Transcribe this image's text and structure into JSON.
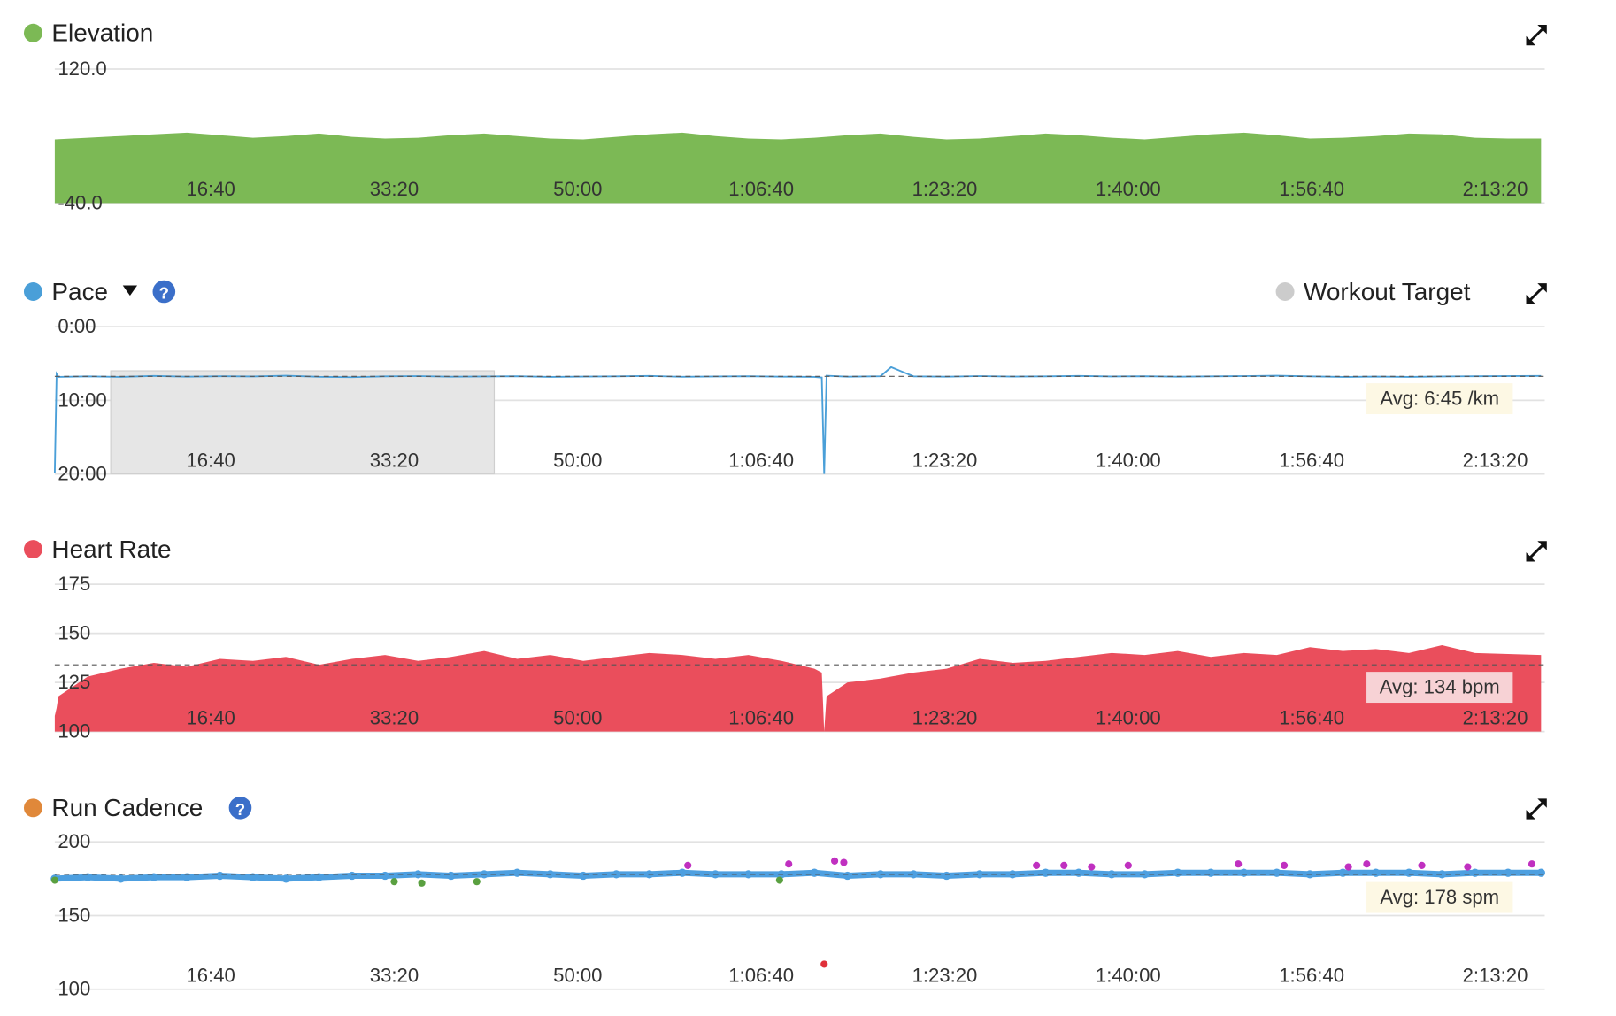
{
  "chart_data": [
    {
      "type": "area",
      "title": "Elevation",
      "color": "#7cb955",
      "x": [
        150,
        330,
        510,
        690,
        870,
        1050,
        1230,
        1410,
        1590,
        1770,
        1950,
        2130,
        2310,
        2490,
        2670,
        2850,
        3030,
        3210,
        3390,
        3570,
        3750,
        3930,
        4110,
        4290,
        4470,
        4650,
        4830,
        5010,
        5190,
        5370,
        5550,
        5730,
        5910,
        6090,
        6270,
        6450,
        6630,
        6810,
        6990,
        7170,
        7350,
        7530,
        7710,
        7890,
        8070,
        8250
      ],
      "values": [
        36,
        38,
        40,
        42,
        44,
        41,
        38,
        40,
        43,
        39,
        37,
        38,
        41,
        43,
        40,
        37,
        36,
        39,
        42,
        44,
        40,
        37,
        36,
        38,
        41,
        43,
        39,
        36,
        37,
        40,
        43,
        41,
        38,
        36,
        39,
        42,
        44,
        41,
        37,
        38,
        40,
        43,
        42,
        38,
        37,
        37
      ],
      "xlim": [
        150,
        8270
      ],
      "xticks": [
        {
          "value": 1000,
          "label": "16:40"
        },
        {
          "value": 2000,
          "label": "33:20"
        },
        {
          "value": 3000,
          "label": "50:00"
        },
        {
          "value": 4000,
          "label": "1:06:40"
        },
        {
          "value": 5000,
          "label": "1:23:20"
        },
        {
          "value": 6000,
          "label": "1:40:00"
        },
        {
          "value": 7000,
          "label": "1:56:40"
        },
        {
          "value": 8000,
          "label": "2:13:20"
        }
      ],
      "ylim": [
        -40,
        120
      ],
      "yticks": [
        {
          "value": -40,
          "label": "-40.0"
        },
        {
          "value": 120,
          "label": "120.0"
        }
      ]
    },
    {
      "type": "line",
      "title": "Pace",
      "color": "#4a9fd8",
      "x": [
        150,
        160,
        170,
        330,
        510,
        690,
        870,
        1050,
        1230,
        1410,
        1590,
        1770,
        1950,
        2130,
        2310,
        2490,
        2670,
        2850,
        3030,
        3210,
        3390,
        3570,
        3750,
        3930,
        4110,
        4290,
        4330,
        4343,
        4356,
        4470,
        4650,
        4708,
        4830,
        5010,
        5190,
        5370,
        5550,
        5730,
        5910,
        6090,
        6270,
        6450,
        6630,
        6810,
        6990,
        7170,
        7350,
        7530,
        7710,
        7890,
        8250
      ],
      "values": [
        1190,
        385,
        410,
        405,
        410,
        402,
        408,
        404,
        406,
        400,
        409,
        412,
        405,
        403,
        408,
        406,
        404,
        410,
        407,
        405,
        402,
        409,
        406,
        404,
        408,
        410,
        415,
        1200,
        400,
        408,
        404,
        330,
        405,
        408,
        403,
        407,
        405,
        402,
        406,
        404,
        408,
        405,
        403,
        400,
        405,
        410,
        407,
        410,
        406,
        404,
        402
      ],
      "avg": {
        "value": 405,
        "label": "Avg: 6:45 /km"
      },
      "workout_target": {
        "name": "Workout Target",
        "color": "#cccccc",
        "x": [
          455,
          2545
        ],
        "y": [
          1200,
          360
        ]
      },
      "xlim": [
        150,
        8270
      ],
      "xticks": [
        {
          "value": 1000,
          "label": "16:40"
        },
        {
          "value": 2000,
          "label": "33:20"
        },
        {
          "value": 3000,
          "label": "50:00"
        },
        {
          "value": 4000,
          "label": "1:06:40"
        },
        {
          "value": 5000,
          "label": "1:23:20"
        },
        {
          "value": 6000,
          "label": "1:40:00"
        },
        {
          "value": 7000,
          "label": "1:56:40"
        },
        {
          "value": 8000,
          "label": "2:13:20"
        }
      ],
      "ylim": [
        1200,
        0
      ],
      "yticks": [
        {
          "value": 1200,
          "label": "20:00"
        },
        {
          "value": 600,
          "label": "10:00"
        },
        {
          "value": 0,
          "label": "0:00"
        }
      ]
    },
    {
      "type": "area",
      "title": "Heart Rate",
      "color": "#ea4e5c",
      "x": [
        150,
        160,
        170,
        330,
        510,
        690,
        870,
        1050,
        1230,
        1410,
        1590,
        1770,
        1950,
        2130,
        2310,
        2490,
        2670,
        2850,
        3030,
        3210,
        3390,
        3570,
        3750,
        3930,
        4110,
        4290,
        4330,
        4343,
        4356,
        4470,
        4650,
        4708,
        4830,
        5010,
        5190,
        5370,
        5550,
        5730,
        5910,
        6090,
        6270,
        6450,
        6630,
        6810,
        6990,
        7170,
        7350,
        7530,
        7710,
        7890,
        8250
      ],
      "values": [
        108,
        112,
        118,
        128,
        132,
        135,
        133,
        137,
        136,
        138,
        134,
        137,
        139,
        136,
        138,
        141,
        137,
        139,
        136,
        138,
        140,
        139,
        137,
        139,
        136,
        132,
        130,
        100,
        118,
        125,
        127,
        128,
        130,
        132,
        137,
        135,
        136,
        138,
        140,
        139,
        141,
        138,
        140,
        139,
        143,
        141,
        142,
        140,
        144,
        140,
        139
      ],
      "avg": {
        "value": 134,
        "label": "Avg: 134 bpm"
      },
      "xlim": [
        150,
        8270
      ],
      "xticks": [
        {
          "value": 1000,
          "label": "16:40"
        },
        {
          "value": 2000,
          "label": "33:20"
        },
        {
          "value": 3000,
          "label": "50:00"
        },
        {
          "value": 4000,
          "label": "1:06:40"
        },
        {
          "value": 5000,
          "label": "1:23:20"
        },
        {
          "value": 6000,
          "label": "1:40:00"
        },
        {
          "value": 7000,
          "label": "1:56:40"
        },
        {
          "value": 8000,
          "label": "2:13:20"
        }
      ],
      "ylim": [
        100,
        175
      ],
      "yticks": [
        100,
        125,
        150,
        175
      ]
    },
    {
      "type": "scatter",
      "title": "Run Cadence",
      "color": "#e0883a",
      "series": [
        {
          "color": "#4d9fe0",
          "x": [
            150,
            330,
            510,
            690,
            870,
            1050,
            1230,
            1410,
            1590,
            1770,
            1950,
            2130,
            2310,
            2490,
            2670,
            2850,
            3030,
            3210,
            3390,
            3570,
            3750,
            3930,
            4110,
            4290,
            4470,
            4650,
            4830,
            5010,
            5190,
            5370,
            5550,
            5730,
            5910,
            6090,
            6270,
            6450,
            6630,
            6810,
            6990,
            7170,
            7350,
            7530,
            7710,
            7890,
            8070,
            8250
          ],
          "values": [
            175,
            176,
            175,
            176,
            176,
            177,
            176,
            175,
            176,
            177,
            177,
            178,
            177,
            178,
            179,
            178,
            177,
            178,
            178,
            179,
            178,
            178,
            178,
            179,
            177,
            178,
            178,
            177,
            178,
            178,
            179,
            179,
            178,
            178,
            179,
            179,
            179,
            179,
            178,
            179,
            179,
            179,
            178,
            179,
            179,
            179
          ]
        },
        {
          "color": "#c030c0",
          "x": [
            3600,
            4150,
            4400,
            4450,
            5500,
            5650,
            5800,
            6000,
            6600,
            6850,
            7200,
            7300,
            7600,
            7850,
            8200
          ],
          "values": [
            184,
            185,
            187,
            186,
            184,
            184,
            183,
            184,
            185,
            184,
            183,
            185,
            184,
            183,
            185
          ]
        },
        {
          "color": "#5aa040",
          "x": [
            150,
            2000,
            2150,
            2450,
            4100
          ],
          "values": [
            174,
            173,
            172,
            173,
            174
          ]
        },
        {
          "color": "#e0303a",
          "x": [
            4343
          ],
          "values": [
            117
          ]
        }
      ],
      "avg": {
        "value": 178,
        "label": "Avg: 178 spm"
      },
      "xlim": [
        150,
        8270
      ],
      "xticks": [
        {
          "value": 1000,
          "label": "16:40"
        },
        {
          "value": 2000,
          "label": "33:20"
        },
        {
          "value": 3000,
          "label": "50:00"
        },
        {
          "value": 4000,
          "label": "1:06:40"
        },
        {
          "value": 5000,
          "label": "1:23:20"
        },
        {
          "value": 6000,
          "label": "1:40:00"
        },
        {
          "value": 7000,
          "label": "1:56:40"
        },
        {
          "value": 8000,
          "label": "2:13:20"
        }
      ],
      "ylim": [
        100,
        200
      ],
      "yticks": [
        100,
        150,
        200
      ]
    }
  ]
}
